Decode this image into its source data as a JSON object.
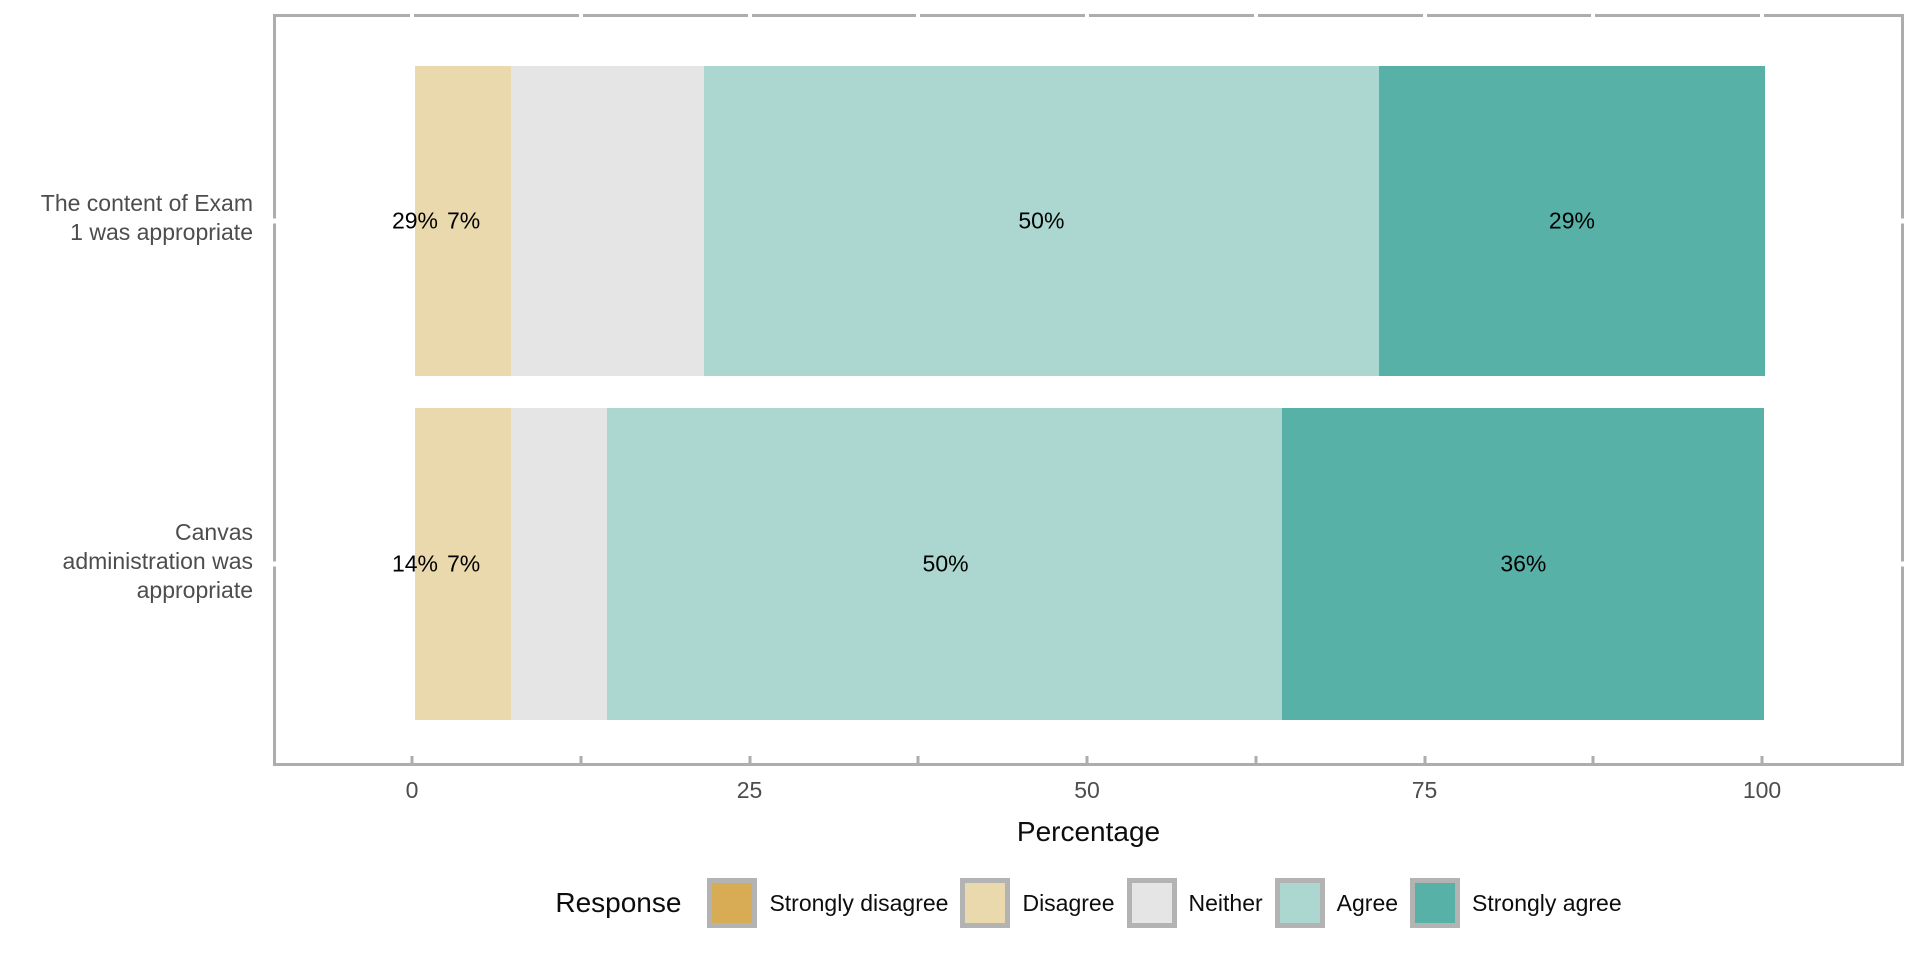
{
  "chart_data": {
    "type": "bar",
    "orientation": "horizontal-stacked",
    "title": "",
    "xlabel": "Percentage",
    "ylabel": "",
    "xlim": [
      0,
      100
    ],
    "x_ticks": [
      0,
      25,
      50,
      75,
      100
    ],
    "minor_tick_step": 12.5,
    "grid": "off",
    "legend": {
      "title": "Response",
      "position": "bottom",
      "entries": [
        {
          "label": "Strongly disagree",
          "color": "#d8ab55"
        },
        {
          "label": "Disagree",
          "color": "#e9d9ad"
        },
        {
          "label": "Neither",
          "color": "#e5e5e5"
        },
        {
          "label": "Agree",
          "color": "#abd7d0"
        },
        {
          "label": "Strongly agree",
          "color": "#58b1a7"
        }
      ]
    },
    "bars": [
      {
        "category_lines": [
          "The content of Exam",
          "1 was appropriate"
        ],
        "segments": [
          {
            "response": "Disagree",
            "value": 7.1,
            "color": "#e9d9ad"
          },
          {
            "response": "Neither",
            "value": 14.3,
            "color": "#e5e5e5"
          },
          {
            "response": "Agree",
            "value": 50.0,
            "color": "#abd7d0"
          },
          {
            "response": "Strongly agree",
            "value": 28.6,
            "color": "#58b1a7"
          }
        ],
        "value_labels": [
          {
            "text": "29%",
            "x": 0.0
          },
          {
            "text": "7%",
            "x": 3.6
          },
          {
            "text": "50%",
            "x": 46.4
          },
          {
            "text": "29%",
            "x": 85.7
          }
        ]
      },
      {
        "category_lines": [
          "Canvas",
          "administration was",
          "appropriate"
        ],
        "segments": [
          {
            "response": "Disagree",
            "value": 7.1,
            "color": "#e9d9ad"
          },
          {
            "response": "Neither",
            "value": 7.1,
            "color": "#e5e5e5"
          },
          {
            "response": "Agree",
            "value": 50.0,
            "color": "#abd7d0"
          },
          {
            "response": "Strongly agree",
            "value": 35.7,
            "color": "#58b1a7"
          }
        ],
        "value_labels": [
          {
            "text": "14%",
            "x": 0.0
          },
          {
            "text": "7%",
            "x": 3.6
          },
          {
            "text": "50%",
            "x": 39.3
          },
          {
            "text": "36%",
            "x": 82.1
          }
        ]
      }
    ]
  }
}
